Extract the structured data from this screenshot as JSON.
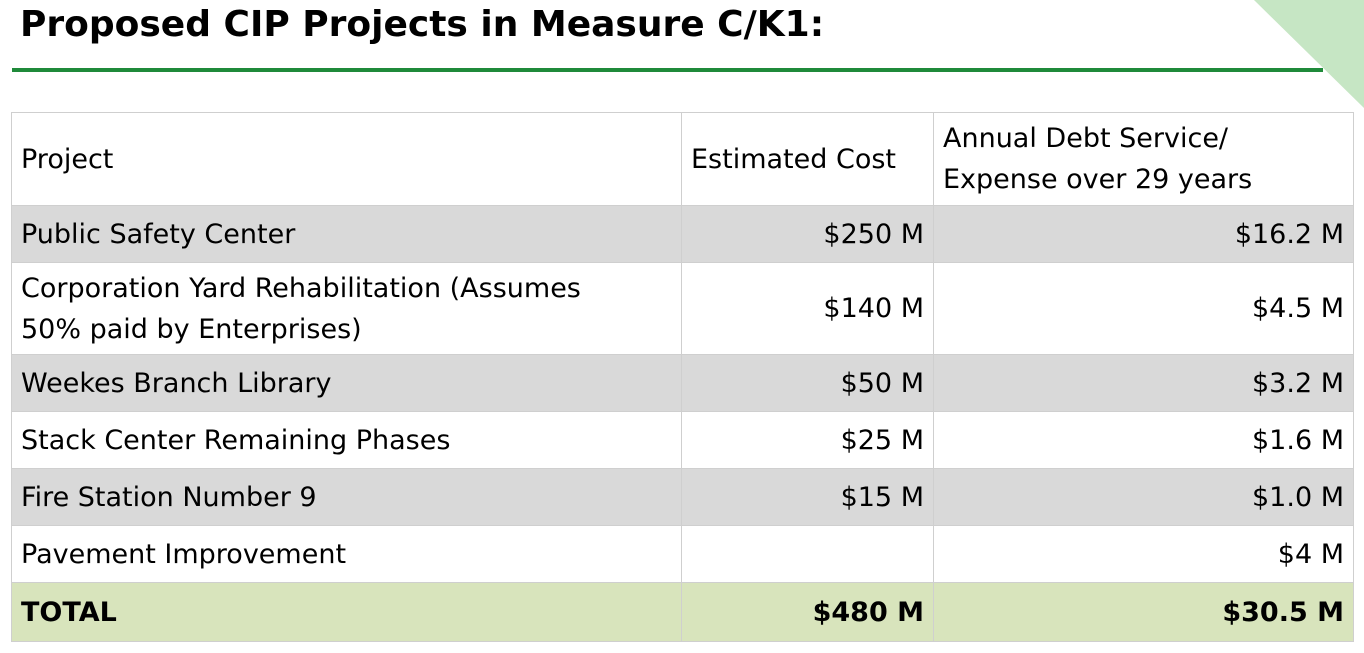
{
  "title": "Proposed CIP Projects in Measure C/K1:",
  "colors": {
    "rule": "#1f8a3a",
    "corner": "#c6e6c4",
    "row_shade": "#d9d9d9",
    "total_shade": "#d8e4bc"
  },
  "table": {
    "headers": {
      "project": "Project",
      "estimated_cost": "Estimated Cost",
      "annual_debt_line1": "Annual Debt Service/",
      "annual_debt_line2": "Expense over 29 years"
    },
    "rows": [
      {
        "project": "Public Safety Center",
        "cost": "$250 M",
        "debt": "$16.2 M"
      },
      {
        "project_line1": "Corporation Yard Rehabilitation (Assumes",
        "project_line2": "50% paid by Enterprises)",
        "cost": "$140 M",
        "debt": "$4.5 M"
      },
      {
        "project": "Weekes Branch Library",
        "cost": "$50 M",
        "debt": "$3.2 M"
      },
      {
        "project": "Stack Center Remaining Phases",
        "cost": "$25 M",
        "debt": "$1.6 M"
      },
      {
        "project": "Fire Station Number 9",
        "cost": "$15 M",
        "debt": "$1.0 M"
      },
      {
        "project": "Pavement Improvement",
        "cost": "",
        "debt": "$4 M"
      }
    ],
    "total": {
      "label": "TOTAL",
      "cost": "$480 M",
      "debt": "$30.5 M"
    }
  }
}
